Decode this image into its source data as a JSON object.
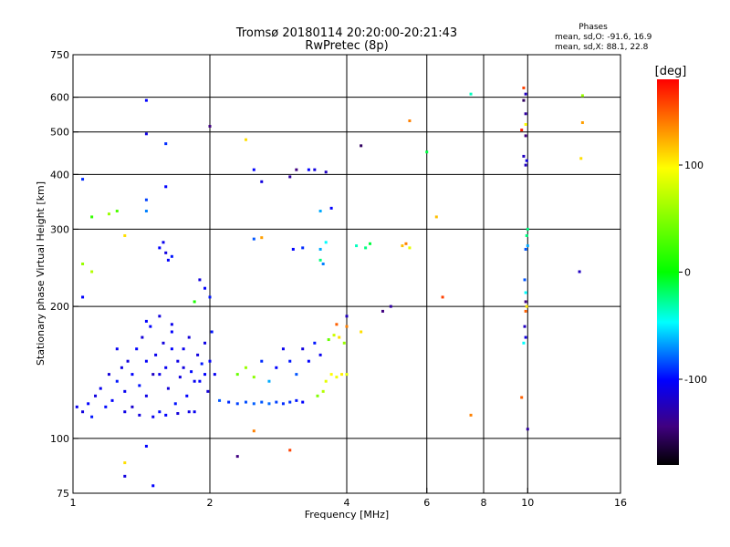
{
  "chart_data": {
    "type": "scatter",
    "title": "Tromsø 20180114 20:20:00-20:21:43",
    "subtitle": "RwPretec (8p)",
    "xlabel": "Frequency [MHz]",
    "ylabel": "Stationary phase Virtual Height [km]",
    "x_scale": "log",
    "y_scale": "log",
    "xlim": [
      1,
      16
    ],
    "ylim": [
      75,
      750
    ],
    "x_ticks": [
      1,
      2,
      4,
      6,
      8,
      10,
      16
    ],
    "x_tick_labels": [
      "1",
      "2",
      "4",
      "6",
      "8",
      "10",
      "16"
    ],
    "x_gridlines": [
      2,
      4,
      6,
      8,
      10
    ],
    "y_ticks": [
      75,
      100,
      200,
      300,
      400,
      500,
      600,
      750
    ],
    "y_tick_labels": [
      "75",
      "100",
      "200",
      "300",
      "400",
      "500",
      "600",
      "750"
    ],
    "y_gridlines": [
      100,
      200,
      300,
      400,
      500,
      600
    ],
    "grid": true,
    "stats": {
      "heading": "Phases",
      "line1": "mean, sd,O: -91.6, 16.9",
      "line2": "mean, sd,X: 88.1, 22.8"
    },
    "colorbar": {
      "label": "[deg]",
      "range": [
        -180,
        180
      ],
      "ticks": [
        100,
        0,
        -100
      ],
      "tick_labels": [
        "100",
        "0",
        "-100"
      ],
      "colors": [
        "#ff0000",
        "#ffff00",
        "#00ff00",
        "#00ffff",
        "#0000ff",
        "#400080",
        "#000000"
      ]
    },
    "points": [
      [
        1.02,
        118,
        -105
      ],
      [
        1.05,
        115,
        -110
      ],
      [
        1.08,
        120,
        -100
      ],
      [
        1.1,
        112,
        -95
      ],
      [
        1.12,
        125,
        -110
      ],
      [
        1.15,
        130,
        -105
      ],
      [
        1.18,
        118,
        -98
      ],
      [
        1.2,
        140,
        -112
      ],
      [
        1.22,
        122,
        -100
      ],
      [
        1.25,
        135,
        -95
      ],
      [
        1.28,
        145,
        -108
      ],
      [
        1.3,
        128,
        -104
      ],
      [
        1.32,
        150,
        -110
      ],
      [
        1.35,
        118,
        -115
      ],
      [
        1.38,
        160,
        -100
      ],
      [
        1.4,
        132,
        -96
      ],
      [
        1.42,
        170,
        -112
      ],
      [
        1.45,
        125,
        -108
      ],
      [
        1.48,
        180,
        -100
      ],
      [
        1.5,
        140,
        -118
      ],
      [
        1.52,
        155,
        -105
      ],
      [
        1.55,
        115,
        -98
      ],
      [
        1.58,
        165,
        -110
      ],
      [
        1.6,
        145,
        -104
      ],
      [
        1.62,
        130,
        -112
      ],
      [
        1.65,
        175,
        -100
      ],
      [
        1.68,
        120,
        -96
      ],
      [
        1.7,
        150,
        -108
      ],
      [
        1.72,
        138,
        -110
      ],
      [
        1.75,
        160,
        -105
      ],
      [
        1.78,
        125,
        -100
      ],
      [
        1.8,
        170,
        -112
      ],
      [
        1.82,
        142,
        -98
      ],
      [
        1.85,
        115,
        -104
      ],
      [
        1.88,
        155,
        -110
      ],
      [
        1.9,
        135,
        -100
      ],
      [
        1.92,
        148,
        -95
      ],
      [
        1.95,
        165,
        -108
      ],
      [
        1.98,
        128,
        -112
      ],
      [
        2.0,
        150,
        -100
      ],
      [
        2.02,
        175,
        -96
      ],
      [
        2.05,
        140,
        -104
      ],
      [
        1.35,
        140,
        -100
      ],
      [
        1.45,
        150,
        -102
      ],
      [
        1.55,
        140,
        -106
      ],
      [
        1.65,
        160,
        -100
      ],
      [
        1.75,
        145,
        -110
      ],
      [
        1.85,
        135,
        -104
      ],
      [
        1.95,
        140,
        -100
      ],
      [
        1.3,
        115,
        -108
      ],
      [
        1.4,
        113,
        -110
      ],
      [
        1.5,
        112,
        -105
      ],
      [
        1.6,
        113,
        -100
      ],
      [
        1.7,
        114,
        -112
      ],
      [
        1.8,
        115,
        -108
      ],
      [
        1.25,
        160,
        -104
      ],
      [
        1.45,
        185,
        -100
      ],
      [
        1.55,
        190,
        -110
      ],
      [
        1.65,
        182,
        -106
      ],
      [
        2.1,
        122,
        -80
      ],
      [
        2.2,
        121,
        -90
      ],
      [
        2.3,
        120,
        -85
      ],
      [
        2.4,
        121,
        -82
      ],
      [
        2.5,
        120,
        -78
      ],
      [
        2.6,
        121,
        -80
      ],
      [
        2.7,
        120,
        -75
      ],
      [
        2.8,
        121,
        -85
      ],
      [
        2.9,
        120,
        -90
      ],
      [
        3.0,
        121,
        -88
      ],
      [
        3.1,
        122,
        -95
      ],
      [
        3.2,
        121,
        -100
      ],
      [
        2.3,
        140,
        40
      ],
      [
        2.4,
        145,
        60
      ],
      [
        2.5,
        138,
        55
      ],
      [
        2.6,
        150,
        -90
      ],
      [
        2.7,
        135,
        -60
      ],
      [
        2.8,
        145,
        -100
      ],
      [
        2.9,
        160,
        -105
      ],
      [
        3.0,
        150,
        -95
      ],
      [
        3.1,
        140,
        -80
      ],
      [
        3.2,
        160,
        -110
      ],
      [
        3.3,
        150,
        -100
      ],
      [
        3.4,
        165,
        -95
      ],
      [
        3.5,
        155,
        -105
      ],
      [
        3.45,
        125,
        50
      ],
      [
        3.55,
        128,
        70
      ],
      [
        3.6,
        135,
        90
      ],
      [
        3.7,
        140,
        100
      ],
      [
        3.8,
        138,
        95
      ],
      [
        3.9,
        140,
        105
      ],
      [
        4.0,
        140,
        90
      ],
      [
        3.75,
        172,
        80
      ],
      [
        3.65,
        168,
        40
      ],
      [
        3.85,
        170,
        110
      ],
      [
        3.95,
        165,
        60
      ],
      [
        1.55,
        272,
        -100
      ],
      [
        1.6,
        265,
        -110
      ],
      [
        1.65,
        260,
        -95
      ],
      [
        1.58,
        280,
        -105
      ],
      [
        1.62,
        255,
        -100
      ],
      [
        1.9,
        230,
        -110
      ],
      [
        1.95,
        220,
        -100
      ],
      [
        2.0,
        210,
        -95
      ],
      [
        1.85,
        205,
        10
      ],
      [
        3.5,
        270,
        -60
      ],
      [
        3.6,
        280,
        -40
      ],
      [
        3.5,
        255,
        -20
      ],
      [
        3.55,
        250,
        -70
      ],
      [
        4.2,
        275,
        -30
      ],
      [
        4.4,
        272,
        -20
      ],
      [
        4.5,
        278,
        -10
      ],
      [
        5.3,
        275,
        120
      ],
      [
        5.5,
        272,
        90
      ],
      [
        5.4,
        278,
        140
      ],
      [
        2.5,
        285,
        -80
      ],
      [
        2.6,
        287,
        130
      ],
      [
        3.05,
        270,
        -100
      ],
      [
        3.2,
        272,
        -90
      ],
      [
        1.45,
        590,
        -100
      ],
      [
        1.45,
        495,
        -110
      ],
      [
        1.6,
        470,
        -90
      ],
      [
        1.6,
        375,
        -100
      ],
      [
        1.45,
        350,
        -85
      ],
      [
        1.45,
        330,
        -70
      ],
      [
        1.1,
        320,
        20
      ],
      [
        1.2,
        325,
        60
      ],
      [
        1.25,
        330,
        30
      ],
      [
        1.05,
        390,
        -90
      ],
      [
        2.0,
        515,
        -140
      ],
      [
        2.4,
        480,
        110
      ],
      [
        2.5,
        410,
        -100
      ],
      [
        2.6,
        385,
        -110
      ],
      [
        3.0,
        395,
        -130
      ],
      [
        3.1,
        410,
        -140
      ],
      [
        3.3,
        410,
        -100
      ],
      [
        3.4,
        410,
        -110
      ],
      [
        3.6,
        405,
        -120
      ],
      [
        4.3,
        465,
        -150
      ],
      [
        5.5,
        530,
        140
      ],
      [
        6.0,
        450,
        -10
      ],
      [
        6.3,
        320,
        120
      ],
      [
        7.5,
        610,
        -30
      ],
      [
        9.8,
        630,
        160
      ],
      [
        9.9,
        610,
        -120
      ],
      [
        9.8,
        590,
        -150
      ],
      [
        9.9,
        550,
        -130
      ],
      [
        9.9,
        520,
        100
      ],
      [
        9.7,
        505,
        170
      ],
      [
        9.9,
        490,
        -140
      ],
      [
        9.8,
        440,
        -120
      ],
      [
        9.95,
        430,
        -110
      ],
      [
        9.9,
        420,
        -120
      ],
      [
        10.0,
        300,
        -20
      ],
      [
        9.95,
        290,
        -20
      ],
      [
        10.0,
        275,
        -60
      ],
      [
        9.9,
        270,
        -80
      ],
      [
        9.85,
        230,
        -80
      ],
      [
        9.9,
        215,
        -40
      ],
      [
        9.9,
        205,
        -140
      ],
      [
        9.95,
        200,
        110
      ],
      [
        9.9,
        195,
        150
      ],
      [
        9.85,
        180,
        -120
      ],
      [
        9.9,
        170,
        -110
      ],
      [
        9.8,
        165,
        -40
      ],
      [
        13.2,
        605,
        60
      ],
      [
        13.2,
        525,
        130
      ],
      [
        13.1,
        435,
        110
      ],
      [
        13.0,
        240,
        -120
      ],
      [
        3.7,
        335,
        -100
      ],
      [
        3.5,
        330,
        -60
      ],
      [
        4.8,
        195,
        -140
      ],
      [
        5.0,
        200,
        -130
      ],
      [
        4.0,
        190,
        -120
      ],
      [
        6.5,
        210,
        160
      ],
      [
        4.0,
        180,
        140
      ],
      [
        4.3,
        175,
        110
      ],
      [
        3.8,
        182,
        150
      ],
      [
        1.45,
        96,
        -100
      ],
      [
        1.3,
        82,
        -110
      ],
      [
        1.5,
        78,
        -100
      ],
      [
        1.3,
        88,
        110
      ],
      [
        2.3,
        91,
        -140
      ],
      [
        3.0,
        94,
        160
      ],
      [
        2.5,
        104,
        140
      ],
      [
        7.5,
        113,
        140
      ],
      [
        9.7,
        124,
        150
      ],
      [
        10.0,
        105,
        -130
      ],
      [
        1.3,
        290,
        110
      ],
      [
        1.05,
        250,
        60
      ],
      [
        1.1,
        240,
        70
      ],
      [
        1.05,
        210,
        -100
      ]
    ]
  }
}
